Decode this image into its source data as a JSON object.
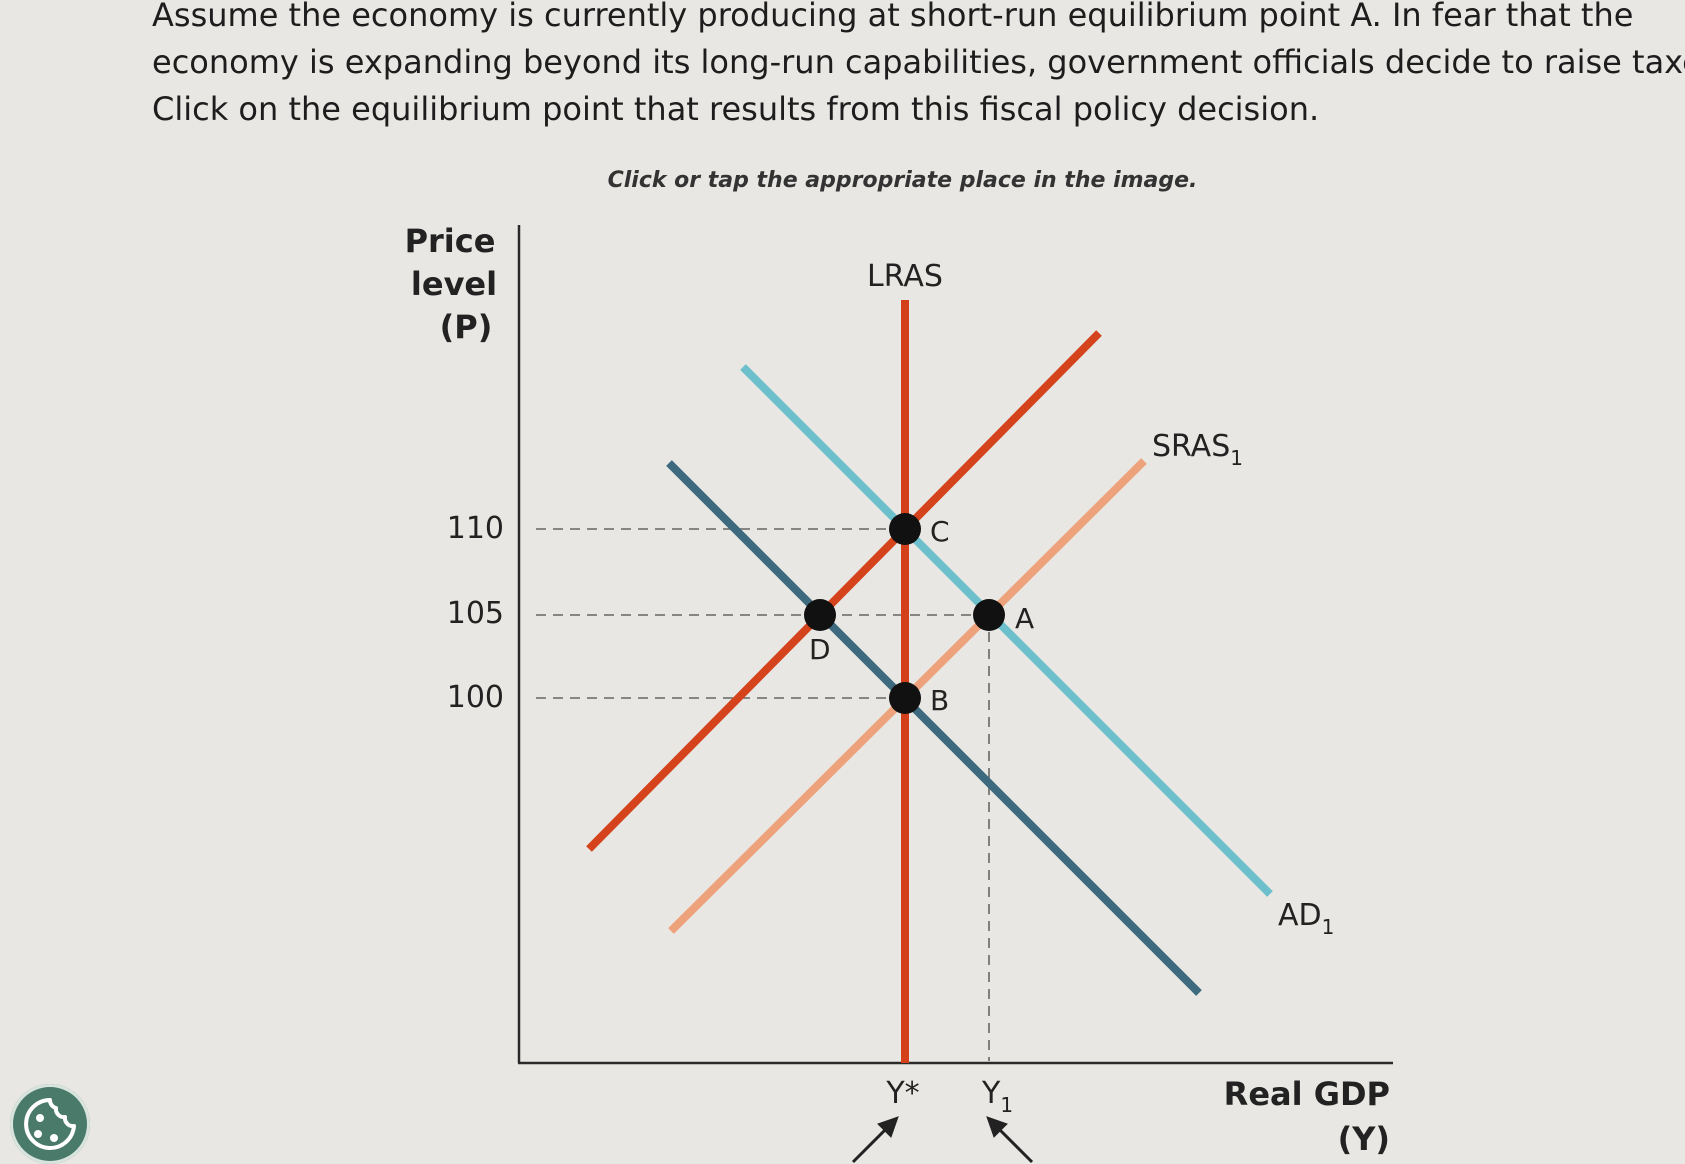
{
  "question": {
    "lines": [
      "Assume the economy is currently producing at short-run equilibrium point A. In fear that the",
      "economy is expanding beyond its long-run capabilities, government officials decide to raise taxes.",
      "Click on the equilibrium point that results from this fiscal policy decision."
    ],
    "instruction": "Click or tap the appropriate place in the image."
  },
  "chart_data": {
    "type": "line",
    "ylabel_lines": [
      "Price",
      "level",
      "(P)"
    ],
    "xlabel_lines": [
      "Real GDP",
      "(Y)"
    ],
    "y_ticks": [
      {
        "value": 110,
        "label": "110"
      },
      {
        "value": 105,
        "label": "105"
      },
      {
        "value": 100,
        "label": "100"
      }
    ],
    "x_ticks": [
      {
        "id": "ystar",
        "label": "Y*"
      },
      {
        "id": "y1",
        "label": "Y",
        "sub": "1"
      }
    ],
    "curve_labels": {
      "lras": "LRAS",
      "sras1": "SRAS",
      "sras1_sub": "1",
      "ad1": "AD",
      "ad1_sub": "1"
    },
    "points": [
      {
        "id": "A",
        "label": "A",
        "curves": "AD1 ∩ SRAS1",
        "price": 105,
        "output": "Y1"
      },
      {
        "id": "B",
        "label": "B",
        "curves": "AD2 ∩ SRAS1",
        "price": 100,
        "output": "Y*"
      },
      {
        "id": "C",
        "label": "C",
        "curves": "AD1 ∩ SRAS2",
        "price": 110,
        "output": "Y*"
      },
      {
        "id": "D",
        "label": "D",
        "curves": "AD2 ∩ SRAS2",
        "price": 105,
        "output": ""
      }
    ],
    "colors": {
      "lras": "#d4401a",
      "sras1": "#eea27c",
      "sras2": "#d4431c",
      "ad1": "#6cbfcb",
      "ad2": "#3d6a7e",
      "axis": "#2a2a2a",
      "point": "#111111"
    }
  },
  "icons": {
    "cookie": "cookie-settings-icon",
    "arrow_ystar": "arrow-up-right-icon",
    "arrow_y1": "arrow-up-left-icon"
  }
}
